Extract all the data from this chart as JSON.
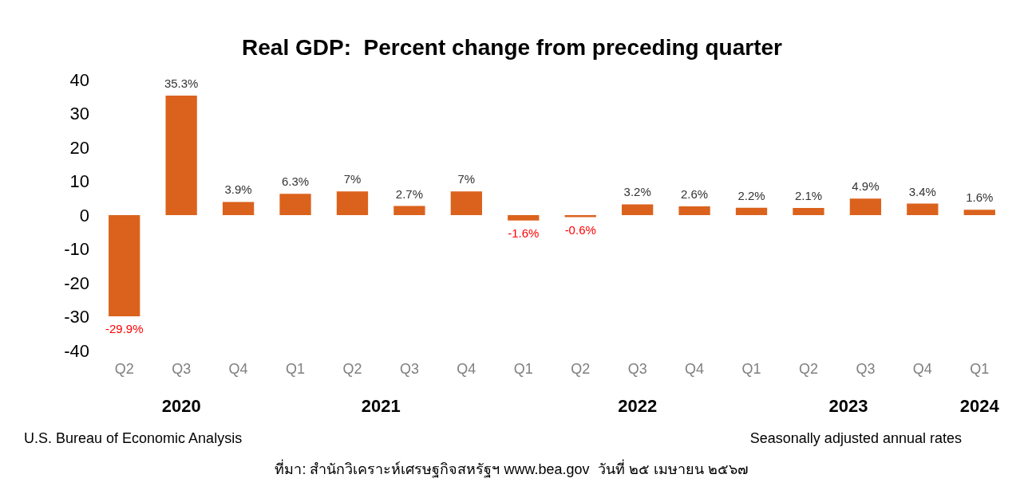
{
  "chart_data": {
    "type": "bar",
    "title": "Real GDP:  Percent change from preceding quarter",
    "categories": [
      "Q2",
      "Q3",
      "Q4",
      "Q1",
      "Q2",
      "Q3",
      "Q4",
      "Q1",
      "Q2",
      "Q3",
      "Q4",
      "Q1",
      "Q2",
      "Q3",
      "Q4",
      "Q1"
    ],
    "values": [
      -29.9,
      35.3,
      3.9,
      6.3,
      7,
      2.7,
      7,
      -1.6,
      -0.6,
      3.2,
      2.6,
      2.2,
      2.1,
      4.9,
      3.4,
      1.6
    ],
    "value_labels": [
      "-29.9%",
      "35.3%",
      "3.9%",
      "6.3%",
      "7%",
      "2.7%",
      "7%",
      "-1.6%",
      "-0.6%",
      "3.2%",
      "2.6%",
      "2.2%",
      "2.1%",
      "4.9%",
      "3.4%",
      "1.6%"
    ],
    "color": "#db621d",
    "ylim": [
      -40,
      40
    ],
    "yticks": [
      -40,
      -30,
      -20,
      -10,
      0,
      10,
      20,
      30,
      40
    ],
    "grid": false,
    "annotations": [
      "2020",
      "2021",
      "2022",
      "2023",
      "2024",
      "U.S. Bureau of Economic Analysis",
      "Seasonally adjusted annual rates",
      "ที่มา: สำนักวิเคราะห์เศรษฐกิจสหรัฐฯ www.bea.gov  วันที่ ๒๕ เมษายน ๒๕๖๗"
    ]
  }
}
